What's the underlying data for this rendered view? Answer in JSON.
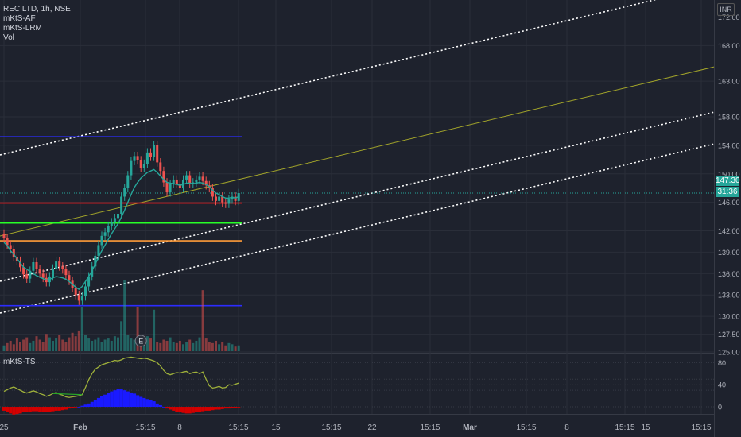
{
  "legend": {
    "title": "REC LTD, 1h, NSE",
    "indicators": [
      "mKtS-AF",
      "mKtS-LRM",
      "Vol"
    ]
  },
  "currency": "INR",
  "price_badge": {
    "price": "147.30",
    "countdown": "31:36"
  },
  "oscillator_label": "mKtS-TS",
  "colors": {
    "background": "#1e222d",
    "up": "#26a69a",
    "down": "#ef5350",
    "badge": "#26a69a",
    "channel": "#ffffff",
    "midline": "#a2a42a",
    "blue_level": "#2c2cff",
    "red_level": "#ff1a1a",
    "green_level": "#27ff27",
    "orange_level": "#ff9b39"
  },
  "chart_data": [
    {
      "type": "candlestick",
      "title": "REC LTD, 1h, NSE",
      "x_ticks": [
        "25",
        "Feb",
        "15:15",
        "8",
        "15:15",
        "15",
        "15:15",
        "22",
        "15:15",
        "Mar",
        "15:15",
        "8",
        "15:15",
        "15",
        "15:15"
      ],
      "y_ticks": [
        "172.00",
        "168.00",
        "163.00",
        "158.00",
        "154.00",
        "150.00",
        "146.00",
        "142.00",
        "139.00",
        "136.00",
        "133.00",
        "130.00",
        "127.50",
        "125.00"
      ],
      "ylim": [
        125,
        173.5
      ],
      "last_price": 147.3,
      "series": [
        {
          "name": "close",
          "values": [
            141.0,
            140.0,
            139.4,
            138.3,
            137.8,
            136.9,
            135.9,
            135.3,
            136.4,
            137.6,
            136.6,
            136.0,
            135.4,
            134.8,
            135.6,
            136.7,
            137.7,
            137.0,
            136.6,
            135.8,
            135.0,
            134.0,
            133.0,
            132.2,
            132.8,
            134.2,
            135.6,
            137.0,
            138.5,
            140.0,
            141.3,
            141.8,
            142.7,
            143.2,
            143.8,
            144.4,
            146.8,
            148.0,
            149.8,
            151.8,
            152.5,
            151.9,
            150.8,
            151.4,
            153.0,
            152.4,
            154.0,
            151.6,
            150.4,
            148.8,
            147.4,
            148.6,
            149.2,
            148.6,
            148.0,
            149.2,
            149.8,
            148.6,
            148.8,
            149.2,
            149.6,
            149.0,
            148.4,
            148.0,
            146.8,
            146.2,
            146.8,
            146.0,
            145.8,
            146.4,
            146.8,
            146.2,
            147.3
          ]
        },
        {
          "name": "mKtS-AF",
          "values": [
            140.4,
            139.9,
            139.2,
            138.7,
            138.1,
            137.5,
            136.9,
            136.6,
            136.3,
            136.0,
            135.7,
            135.5,
            135.3,
            135.1,
            135.2,
            135.4,
            135.6,
            135.5,
            135.4,
            135.2,
            134.9,
            134.5,
            134.1,
            133.8,
            134.2,
            134.9,
            135.6,
            136.4,
            137.3,
            138.3,
            139.2,
            140.0,
            140.8,
            141.6,
            142.3,
            143.0,
            143.9,
            144.9,
            146.0,
            147.1,
            148.1,
            148.8,
            149.4,
            149.8,
            150.2,
            150.4,
            150.6,
            150.2,
            149.7,
            149.2,
            148.8,
            148.7,
            148.6,
            148.5,
            148.4,
            148.5,
            148.7,
            148.7,
            148.6,
            148.7,
            148.8,
            148.7,
            148.5,
            148.2,
            147.7,
            147.3,
            147.1,
            146.8,
            146.6,
            146.6,
            146.7,
            146.6,
            146.8
          ]
        }
      ],
      "horizontal_levels": [
        {
          "name": "blue-upper",
          "value": 155.2
        },
        {
          "name": "red",
          "value": 145.9
        },
        {
          "name": "green",
          "value": 143.1
        },
        {
          "name": "orange",
          "value": 140.6
        },
        {
          "name": "blue-lower",
          "value": 131.5
        }
      ]
    },
    {
      "type": "bar",
      "title": "Vol",
      "values": [
        5,
        7,
        9,
        6,
        11,
        8,
        10,
        12,
        7,
        9,
        13,
        10,
        8,
        15,
        12,
        9,
        11,
        14,
        10,
        8,
        12,
        16,
        13,
        18,
        38,
        14,
        11,
        9,
        10,
        12,
        8,
        10,
        11,
        9,
        13,
        12,
        26,
        62,
        14,
        11,
        10,
        38,
        12,
        9,
        13,
        11,
        36,
        8,
        7,
        10,
        9,
        12,
        8,
        7,
        9,
        6,
        8,
        10,
        7,
        9,
        12,
        53,
        11,
        8,
        7,
        9,
        6,
        8,
        5,
        7,
        6,
        4,
        5
      ]
    },
    {
      "type": "line",
      "title": "mKtS-TS",
      "y_ticks": [
        "80",
        "40",
        "0"
      ],
      "ylim": [
        -10,
        92
      ],
      "series": [
        {
          "name": "TS",
          "values": [
            28,
            31,
            34,
            36,
            33,
            30,
            27,
            25,
            27,
            29,
            27,
            24,
            22,
            19,
            21,
            24,
            26,
            23,
            21,
            18,
            17,
            18,
            19,
            20,
            22,
            35,
            49,
            60,
            68,
            72,
            76,
            78,
            80,
            82,
            84,
            83,
            85,
            88,
            89,
            90,
            89,
            88,
            87,
            88,
            87,
            85,
            83,
            80,
            74,
            66,
            60,
            58,
            60,
            62,
            61,
            63,
            64,
            60,
            62,
            63,
            60,
            63,
            50,
            38,
            34,
            35,
            37,
            34,
            35,
            40,
            39,
            41,
            43
          ]
        },
        {
          "name": "histogram",
          "values": [
            -7,
            -9,
            -12,
            -14,
            -13,
            -12,
            -10,
            -9,
            -9,
            -8,
            -8,
            -9,
            -10,
            -10,
            -9,
            -8,
            -7,
            -7,
            -6,
            -5,
            -3,
            -2,
            -1,
            0,
            2,
            4,
            6,
            9,
            12,
            16,
            19,
            22,
            25,
            28,
            30,
            32,
            33,
            30,
            28,
            26,
            24,
            21,
            18,
            16,
            14,
            12,
            10,
            6,
            3,
            0,
            -3,
            -5,
            -7,
            -9,
            -10,
            -11,
            -12,
            -12,
            -11,
            -10,
            -9,
            -8,
            -7,
            -7,
            -6,
            -5,
            -5,
            -4,
            -3,
            -3,
            -2,
            -2,
            -1
          ]
        }
      ]
    }
  ]
}
